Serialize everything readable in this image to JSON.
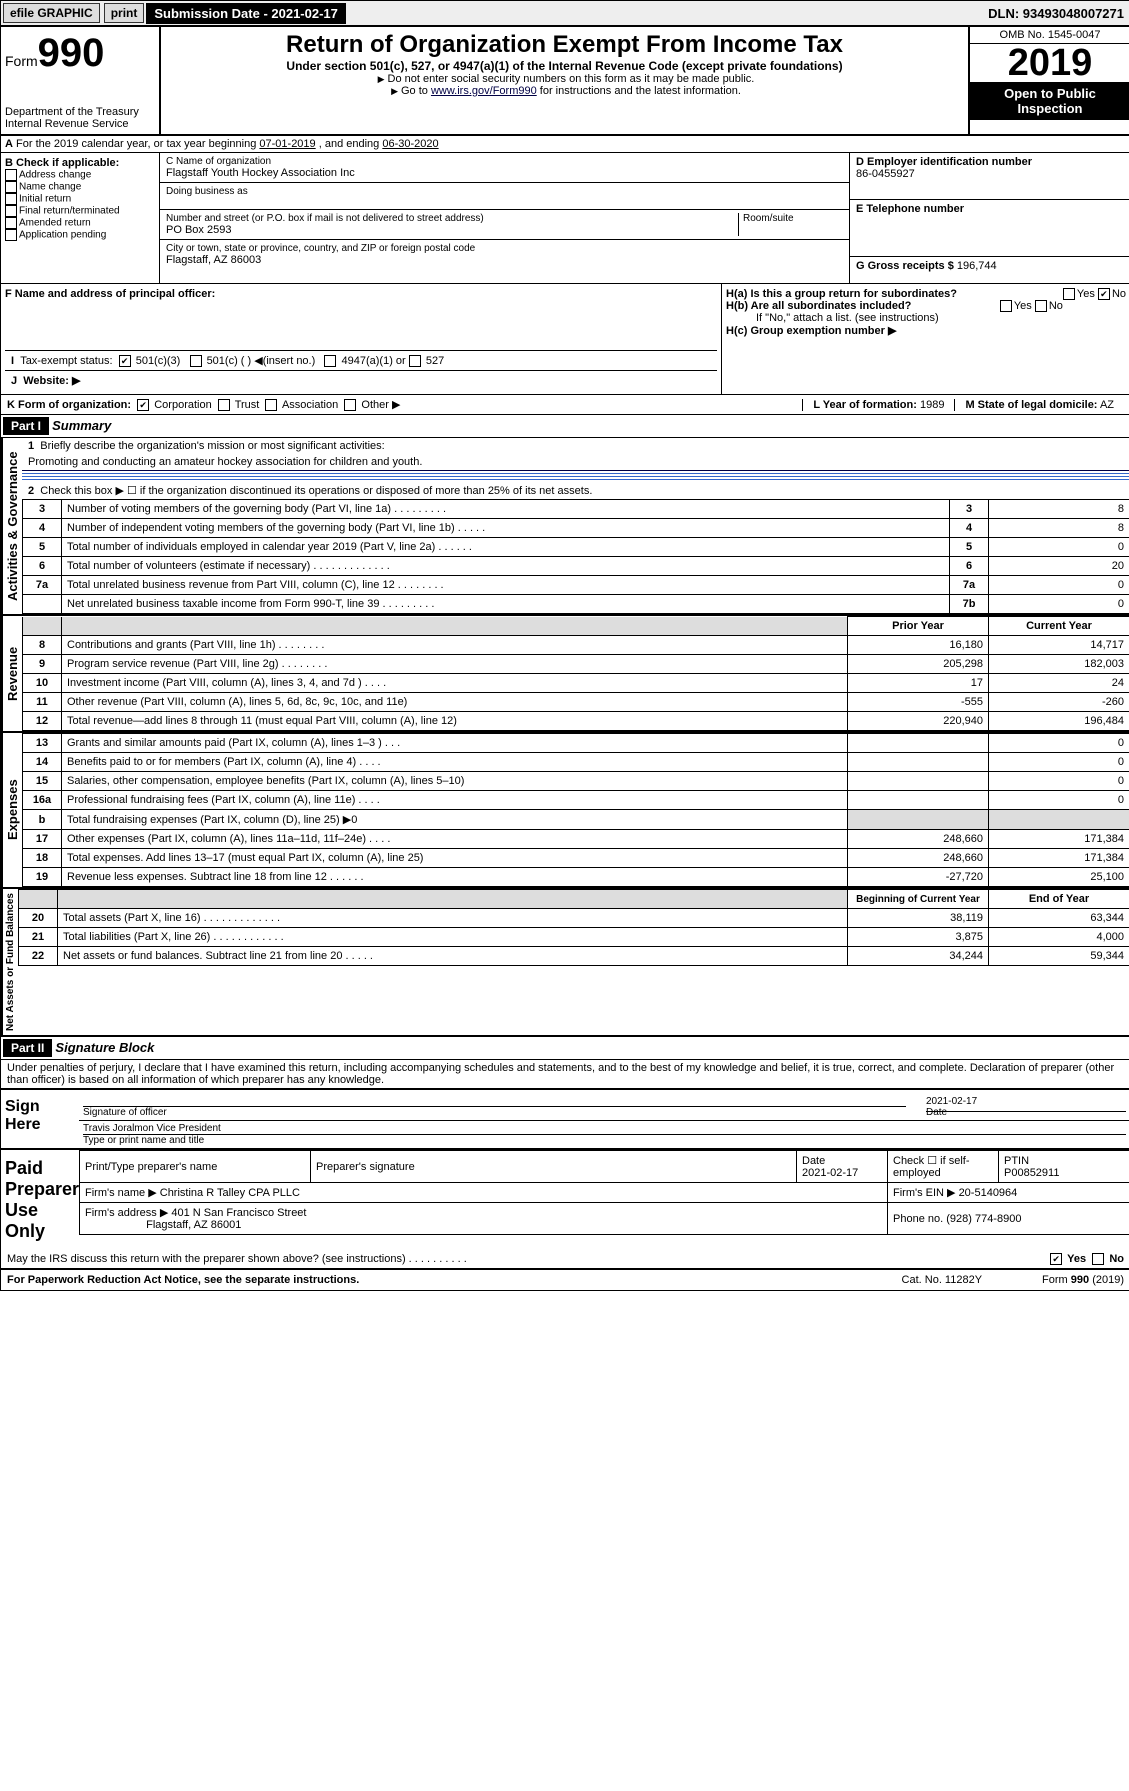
{
  "topbar": {
    "efile": "efile GRAPHIC",
    "print": "print",
    "subdate_label": "Submission Date - 2021-02-17",
    "dln": "DLN: 93493048007271"
  },
  "header": {
    "form_prefix": "Form",
    "form_no": "990",
    "dept1": "Department of the Treasury",
    "dept2": "Internal Revenue Service",
    "title": "Return of Organization Exempt From Income Tax",
    "sub": "Under section 501(c), 527, or 4947(a)(1) of the Internal Revenue Code (except private foundations)",
    "warn": "Do not enter social security numbers on this form as it may be made public.",
    "goto_pre": "Go to ",
    "goto_link": "www.irs.gov/Form990",
    "goto_post": " for instructions and the latest information.",
    "omb": "OMB No. 1545-0047",
    "year": "2019",
    "open": "Open to Public Inspection"
  },
  "sectionA": {
    "text_pre": "For the 2019 calendar year, or tax year beginning ",
    "begin": "07-01-2019",
    "mid": " , and ending ",
    "end": "06-30-2020"
  },
  "sectionB": {
    "label": "B Check if applicable:",
    "items": [
      "Address change",
      "Name change",
      "Initial return",
      "Final return/terminated",
      "Amended return",
      "Application pending"
    ]
  },
  "sectionC": {
    "name_lbl": "C Name of organization",
    "name": "Flagstaff Youth Hockey Association Inc",
    "dba_lbl": "Doing business as",
    "addr_lbl": "Number and street (or P.O. box if mail is not delivered to street address)",
    "room_lbl": "Room/suite",
    "addr": "PO Box 2593",
    "city_lbl": "City or town, state or province, country, and ZIP or foreign postal code",
    "city": "Flagstaff, AZ  86003"
  },
  "sectionD": {
    "lbl": "D Employer identification number",
    "val": "86-0455927"
  },
  "sectionE": {
    "lbl": "E Telephone number",
    "val": ""
  },
  "sectionG": {
    "lbl": "G Gross receipts $",
    "val": "196,744"
  },
  "sectionF": {
    "lbl": "F  Name and address of principal officer:",
    "val": ""
  },
  "sectionH": {
    "ha": "H(a)  Is this a group return for subordinates?",
    "hb": "H(b)  Are all subordinates included?",
    "hb_note": "If \"No,\" attach a list. (see instructions)",
    "hc": "H(c)  Group exemption number ▶"
  },
  "taxexempt": {
    "lbl": "Tax-exempt status:",
    "o1": "501(c)(3)",
    "o2": "501(c) (   ) ◀(insert no.)",
    "o3": "4947(a)(1) or",
    "o4": "527"
  },
  "website": {
    "lbl": "Website: ▶",
    "val": ""
  },
  "sectionK": {
    "lbl": "K Form of organization:",
    "opts": [
      "Corporation",
      "Trust",
      "Association",
      "Other ▶"
    ],
    "L_lbl": "L Year of formation:",
    "L_val": "1989",
    "M_lbl": "M State of legal domicile:",
    "M_val": "AZ"
  },
  "partI": {
    "bar": "Part I",
    "title": "Summary",
    "q1": "Briefly describe the organization's mission or most significant activities:",
    "q1a": "Promoting and conducting an amateur hockey association for children and youth.",
    "q2": "Check this box ▶ ☐  if the organization discontinued its operations or disposed of more than 25% of its net assets.",
    "vlabel1": "Activities & Governance",
    "vlabel2": "Revenue",
    "vlabel3": "Expenses",
    "vlabel4": "Net Assets or Fund Balances",
    "lines_gov": [
      {
        "n": "3",
        "t": "Number of voting members of the governing body (Part VI, line 1a)  .   .   .   .   .   .   .   .   .",
        "rn": "3",
        "v": "8"
      },
      {
        "n": "4",
        "t": "Number of independent voting members of the governing body (Part VI, line 1b)   .   .   .   .   .",
        "rn": "4",
        "v": "8"
      },
      {
        "n": "5",
        "t": "Total number of individuals employed in calendar year 2019 (Part V, line 2a)   .   .   .   .   .   .",
        "rn": "5",
        "v": "0"
      },
      {
        "n": "6",
        "t": "Total number of volunteers (estimate if necessary)   .   .   .   .   .   .   .   .   .   .   .   .   .",
        "rn": "6",
        "v": "20"
      },
      {
        "n": "7a",
        "t": "Total unrelated business revenue from Part VIII, column (C), line 12   .   .   .   .   .   .   .   .",
        "rn": "7a",
        "v": "0"
      },
      {
        "n": "",
        "t": "Net unrelated business taxable income from Form 990-T, line 39   .   .   .   .   .   .   .   .   .",
        "rn": "7b",
        "v": "0"
      }
    ],
    "hdr_prior": "Prior Year",
    "hdr_curr": "Current Year",
    "lines_rev": [
      {
        "n": "8",
        "t": "Contributions and grants (Part VIII, line 1h)   .   .   .   .   .   .   .   .",
        "p": "16,180",
        "c": "14,717"
      },
      {
        "n": "9",
        "t": "Program service revenue (Part VIII, line 2g)   .   .   .   .   .   .   .   .",
        "p": "205,298",
        "c": "182,003"
      },
      {
        "n": "10",
        "t": "Investment income (Part VIII, column (A), lines 3, 4, and 7d )   .   .   .   .",
        "p": "17",
        "c": "24"
      },
      {
        "n": "11",
        "t": "Other revenue (Part VIII, column (A), lines 5, 6d, 8c, 9c, 10c, and 11e)",
        "p": "-555",
        "c": "-260"
      },
      {
        "n": "12",
        "t": "Total revenue—add lines 8 through 11 (must equal Part VIII, column (A), line 12)",
        "p": "220,940",
        "c": "196,484"
      }
    ],
    "lines_exp": [
      {
        "n": "13",
        "t": "Grants and similar amounts paid (Part IX, column (A), lines 1–3 )   .   .   .",
        "p": "",
        "c": "0"
      },
      {
        "n": "14",
        "t": "Benefits paid to or for members (Part IX, column (A), line 4)   .   .   .   .",
        "p": "",
        "c": "0"
      },
      {
        "n": "15",
        "t": "Salaries, other compensation, employee benefits (Part IX, column (A), lines 5–10)",
        "p": "",
        "c": "0"
      },
      {
        "n": "16a",
        "t": "Professional fundraising fees (Part IX, column (A), line 11e)   .   .   .   .",
        "p": "",
        "c": "0"
      },
      {
        "n": "b",
        "t": "Total fundraising expenses (Part IX, column (D), line 25) ▶0",
        "p": "SHADE",
        "c": "SHADE"
      },
      {
        "n": "17",
        "t": "Other expenses (Part IX, column (A), lines 11a–11d, 11f–24e)   .   .   .   .",
        "p": "248,660",
        "c": "171,384"
      },
      {
        "n": "18",
        "t": "Total expenses. Add lines 13–17 (must equal Part IX, column (A), line 25)",
        "p": "248,660",
        "c": "171,384"
      },
      {
        "n": "19",
        "t": "Revenue less expenses. Subtract line 18 from line 12   .   .   .   .   .   .",
        "p": "-27,720",
        "c": "25,100"
      }
    ],
    "hdr_bcy": "Beginning of Current Year",
    "hdr_eoy": "End of Year",
    "lines_net": [
      {
        "n": "20",
        "t": "Total assets (Part X, line 16)   .   .   .   .   .   .   .   .   .   .   .   .   .",
        "p": "38,119",
        "c": "63,344"
      },
      {
        "n": "21",
        "t": "Total liabilities (Part X, line 26)   .   .   .   .   .   .   .   .   .   .   .   .",
        "p": "3,875",
        "c": "4,000"
      },
      {
        "n": "22",
        "t": "Net assets or fund balances. Subtract line 21 from line 20   .   .   .   .   .",
        "p": "34,244",
        "c": "59,344"
      }
    ]
  },
  "partII": {
    "bar": "Part II",
    "title": "Signature Block",
    "decl": "Under penalties of perjury, I declare that I have examined this return, including accompanying schedules and statements, and to the best of my knowledge and belief, it is true, correct, and complete. Declaration of preparer (other than officer) is based on all information of which preparer has any knowledge."
  },
  "sign": {
    "here": "Sign Here",
    "sig_lbl": "Signature of officer",
    "date_lbl": "Date",
    "date": "2021-02-17",
    "name": "Travis Joralmon  Vice President",
    "name_lbl": "Type or print name and title"
  },
  "paid": {
    "lbl": "Paid Preparer Use Only",
    "h1": "Print/Type preparer's name",
    "h2": "Preparer's signature",
    "h3": "Date",
    "h3v": "2021-02-17",
    "h4": "Check ☐ if self-employed",
    "h5": "PTIN",
    "h5v": "P00852911",
    "firm_lbl": "Firm's name    ▶",
    "firm": "Christina R Talley CPA PLLC",
    "ein_lbl": "Firm's EIN ▶",
    "ein": "20-5140964",
    "faddr_lbl": "Firm's address ▶",
    "faddr1": "401 N San Francisco Street",
    "faddr2": "Flagstaff, AZ  86001",
    "phone_lbl": "Phone no.",
    "phone": "(928) 774-8900"
  },
  "discuss": {
    "q": "May the IRS discuss this return with the preparer shown above? (see instructions)   .   .   .   .   .   .   .   .   .   .",
    "yes": "Yes",
    "no": "No"
  },
  "footer": {
    "l": "For Paperwork Reduction Act Notice, see the separate instructions.",
    "m": "Cat. No. 11282Y",
    "r": "Form 990 (2019)"
  }
}
